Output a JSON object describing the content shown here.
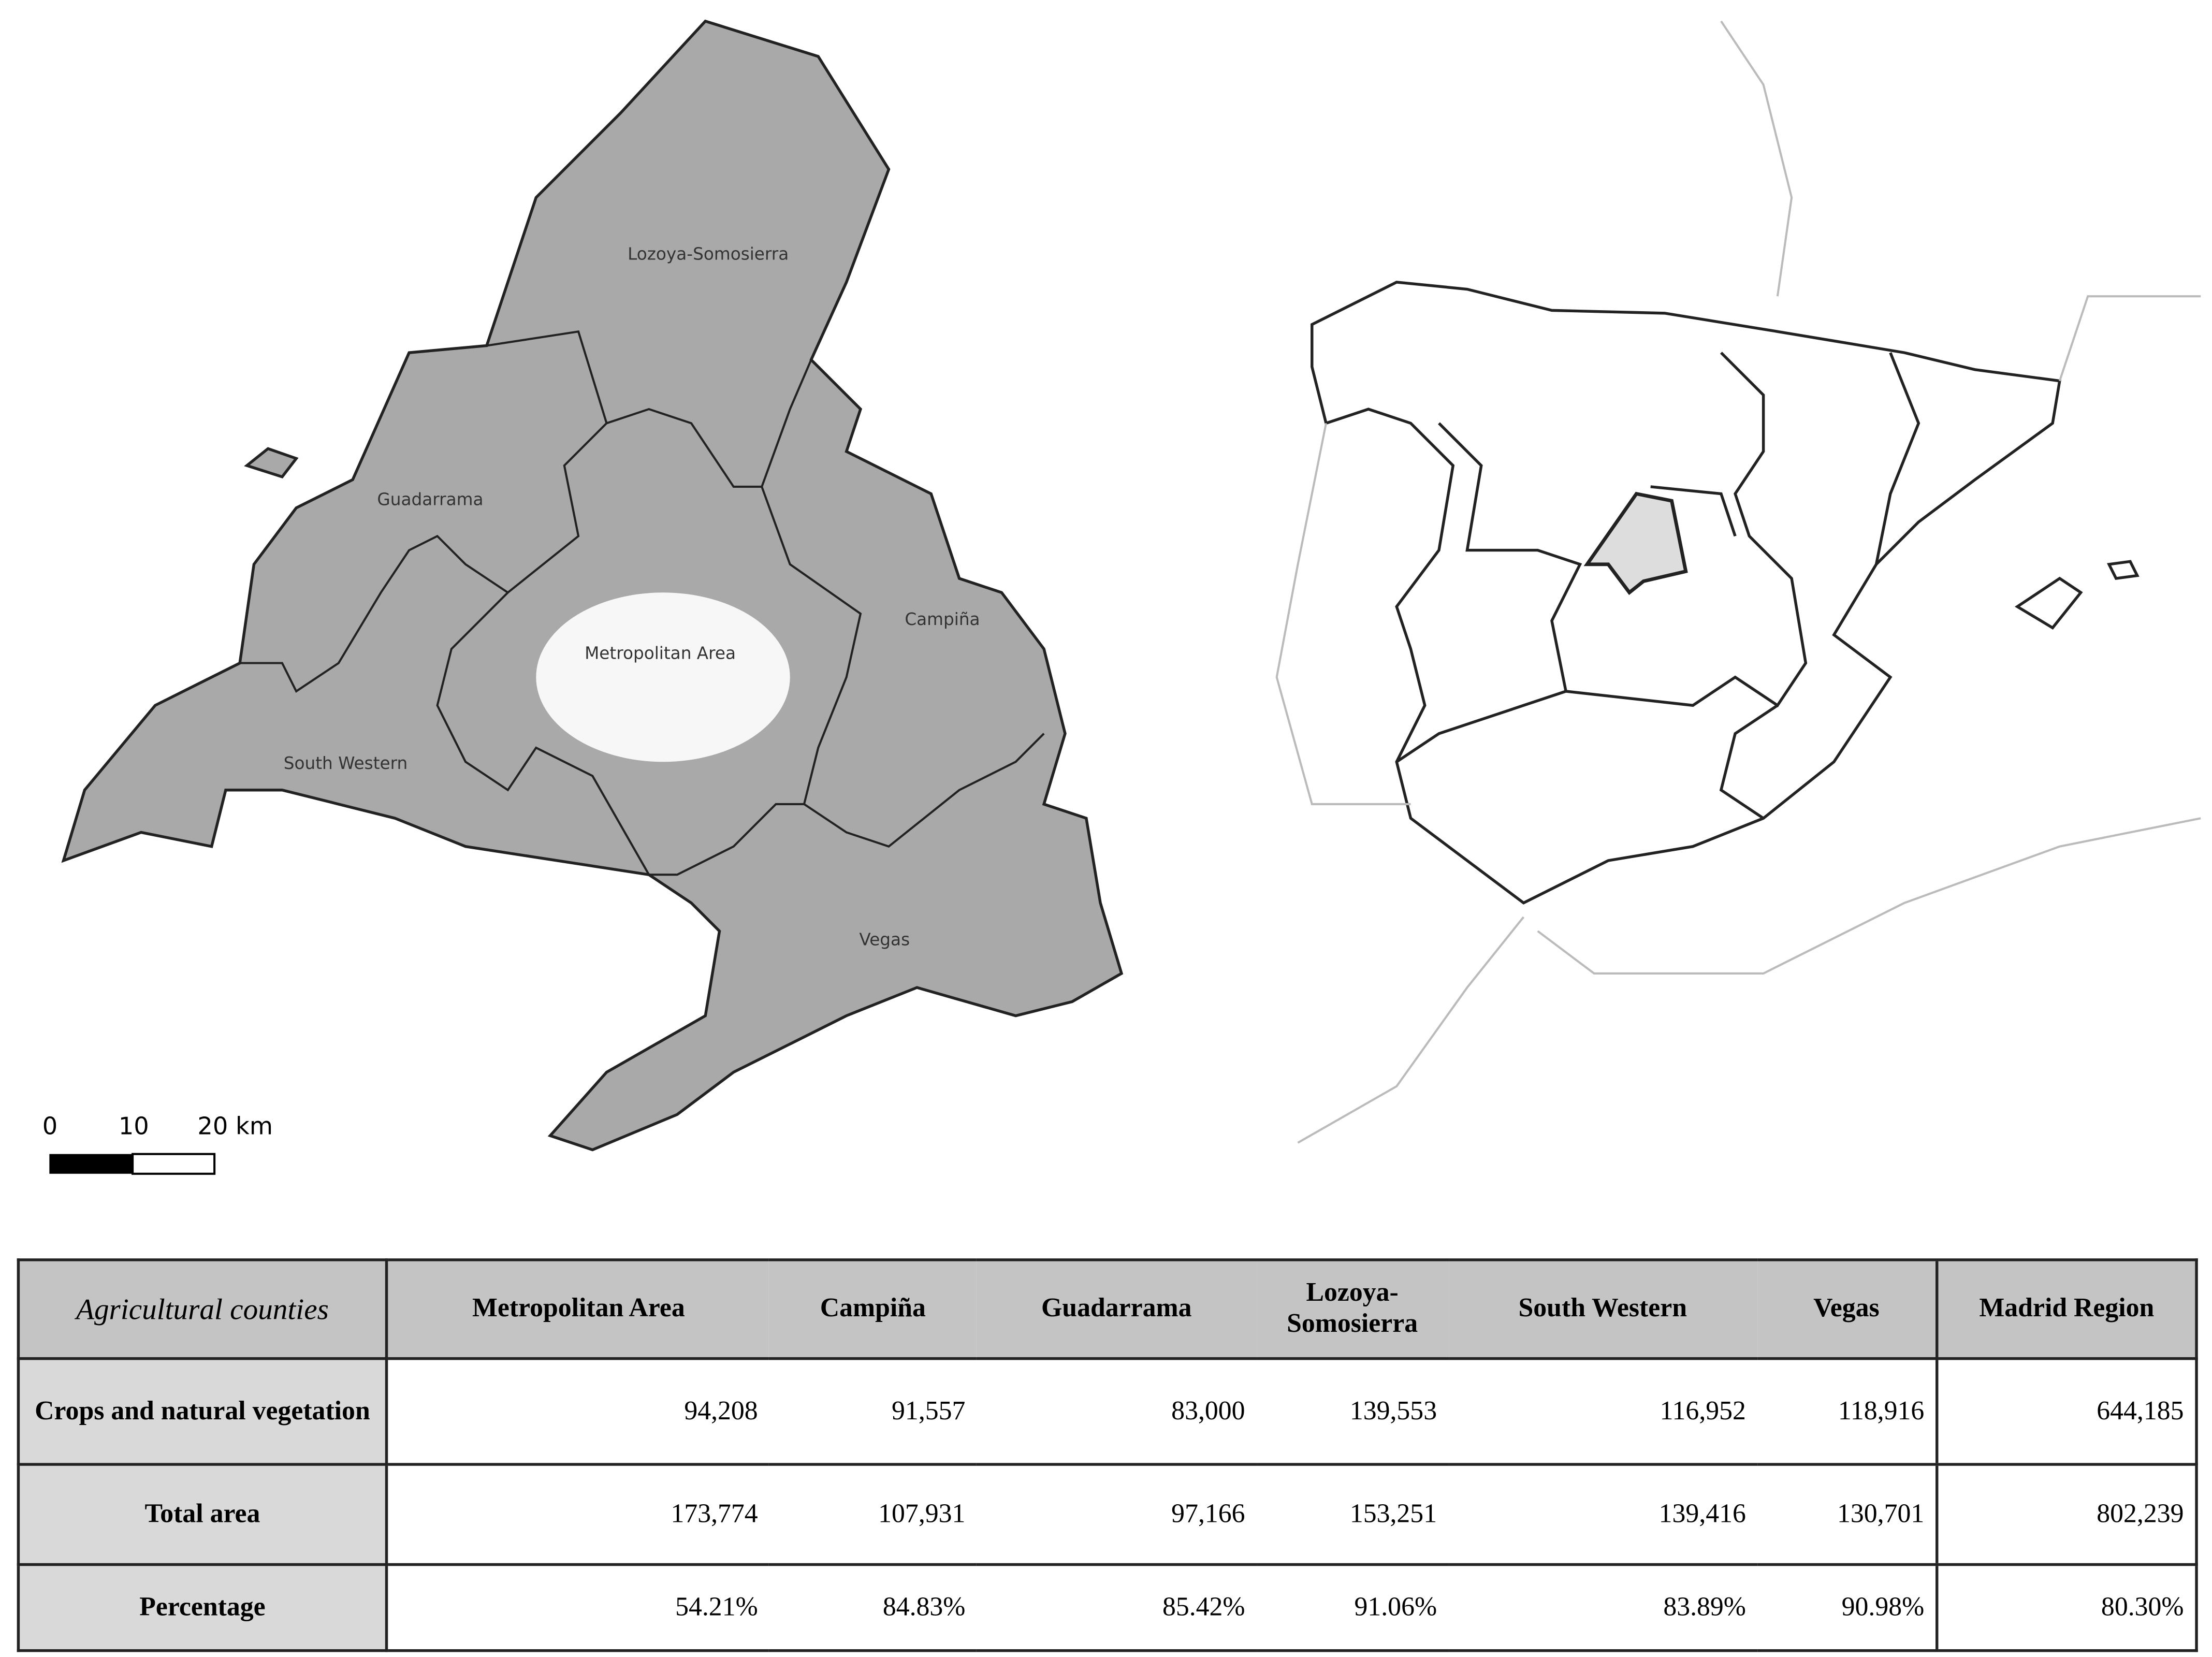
{
  "map": {
    "regions": [
      "Lozoya-Somosierra",
      "Guadarrama",
      "Campiña",
      "Metropolitan Area",
      "South Western",
      "Vegas"
    ],
    "scale": [
      "0",
      "10",
      "20 km"
    ]
  },
  "table": {
    "header": [
      "Agricultural counties",
      "Metropolitan Area",
      "Campiña",
      "Guadarrama",
      "Lozoya-Somosierra",
      "South Western",
      "Vegas",
      "Madrid Region"
    ],
    "rows": [
      [
        "Crops and natural vegetation",
        "94,208",
        "91,557",
        "83,000",
        "139,553",
        "116,952",
        "118,916",
        "644,185"
      ],
      [
        "Total area",
        "173,774",
        "107,931",
        "97,166",
        "153,251",
        "139,416",
        "130,701",
        "802,239"
      ],
      [
        "Percentage",
        "54.21%",
        "84.83%",
        "85.42%",
        "91.06%",
        "83.89%",
        "90.98%",
        "80.30%"
      ]
    ]
  }
}
